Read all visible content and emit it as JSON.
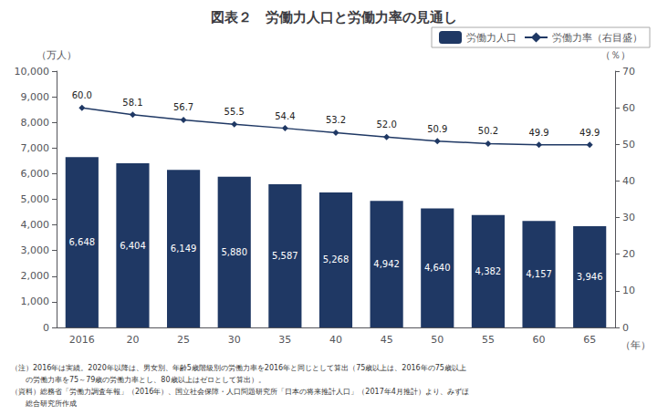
{
  "chart_data": {
    "type": "bar",
    "title": "図表２　労働力人口と労働力率の見通し",
    "x_label": "（年）",
    "y_label": "（万人）",
    "y2_label": "（％）",
    "categories": [
      "2016",
      "20",
      "25",
      "30",
      "35",
      "40",
      "45",
      "50",
      "55",
      "60",
      "65"
    ],
    "series": [
      {
        "name": "労働力人口",
        "type": "bar",
        "color": "#1f3864",
        "values": [
          6648,
          6404,
          6149,
          5880,
          5587,
          5268,
          4942,
          4640,
          4382,
          4157,
          3946
        ],
        "value_labels": [
          "6,648",
          "6,404",
          "6,149",
          "5,880",
          "5,587",
          "5,268",
          "4,942",
          "4,640",
          "4,382",
          "4,157",
          "3,946"
        ]
      },
      {
        "name": "労働力率（右目盛）",
        "type": "line",
        "axis": "y2",
        "color": "#1f3864",
        "marker": "diamond",
        "values": [
          60.0,
          58.1,
          56.7,
          55.5,
          54.4,
          53.2,
          52.0,
          50.9,
          50.2,
          49.9,
          49.9
        ],
        "value_labels": [
          "60.0",
          "58.1",
          "56.7",
          "55.5",
          "54.4",
          "53.2",
          "52.0",
          "50.9",
          "50.2",
          "49.9",
          "49.9"
        ]
      }
    ],
    "ylim": [
      0,
      10000
    ],
    "yticks": [
      0,
      {
        "value": 1000,
        "label": "1,000"
      },
      {
        "value": 2000,
        "label": "2,000"
      },
      {
        "value": 3000,
        "label": "3,000"
      },
      {
        "value": 4000,
        "label": "4,000"
      },
      {
        "value": 5000,
        "label": "5,000"
      },
      {
        "value": 6000,
        "label": "6,000"
      },
      {
        "value": 7000,
        "label": "7,000"
      },
      {
        "value": 8000,
        "label": "8,000"
      },
      {
        "value": 9000,
        "label": "9,000"
      },
      {
        "value": 10000,
        "label": "10,000"
      }
    ],
    "y2lim": [
      0,
      70
    ],
    "y2ticks": [
      0,
      10,
      20,
      30,
      40,
      50,
      60,
      70
    ],
    "grid": false,
    "legend": "upper right",
    "data_labels": true,
    "annotations": [
      "（注）2016年は実績。2020年以降は、男女別、年齢5歳階級別の労働力率を2016年と同じとして算出（75歳以上は、2016年の75歳以上",
      "　　の労働力率を75～79歳の労働力率とし、80歳以上はゼロとして算出）。",
      "（資料）総務省「労働力調査年報」（2016年）、国立社会保障・人口問題研究所「日本の将来推計人口」（2017年4月推計）より、みずほ",
      "　　総合研究所作成"
    ]
  }
}
